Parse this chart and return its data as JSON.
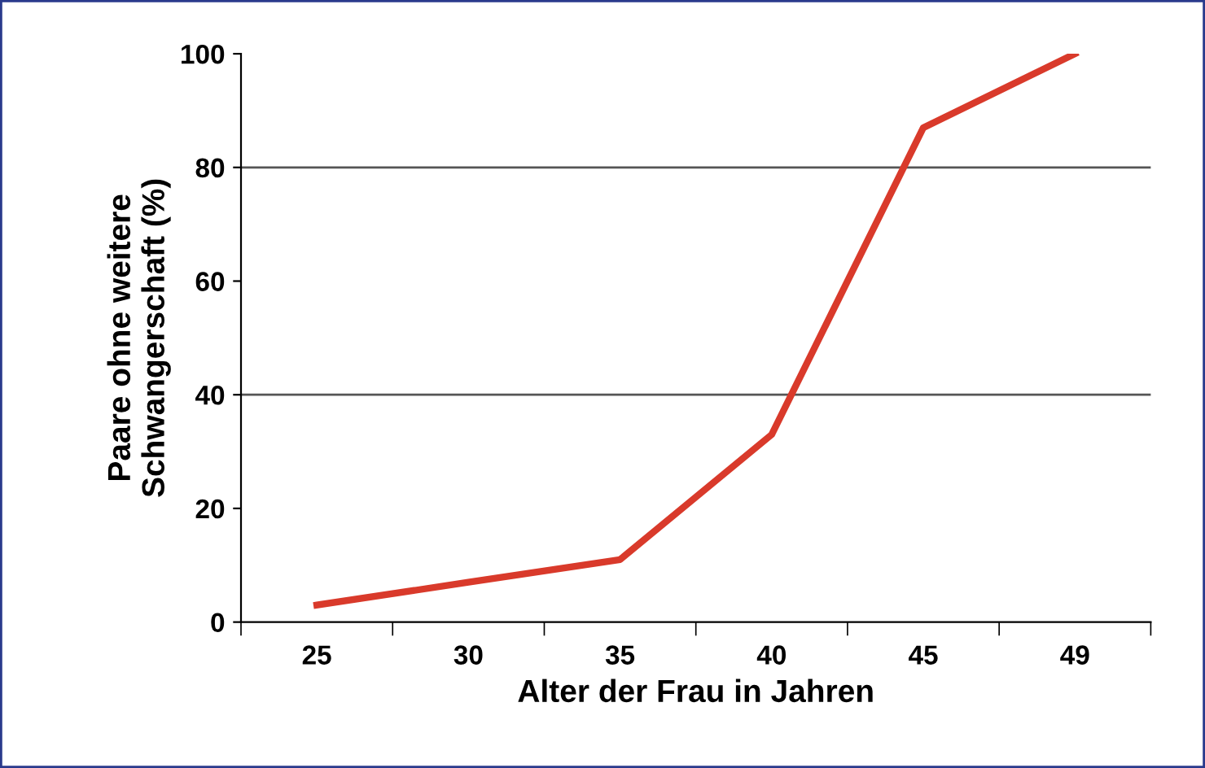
{
  "chart_data": {
    "type": "line",
    "xlabel": "Alter der Frau in Jahren",
    "ylabel": "Paare ohne weitere\nSchwangerschaft (%)",
    "categories": [
      "25",
      "30",
      "35",
      "40",
      "45",
      "49"
    ],
    "series": [
      {
        "color": "#d93a2b",
        "values": [
          3,
          7,
          11,
          33,
          87,
          100
        ]
      }
    ],
    "ylim": [
      0,
      100
    ],
    "yticks": [
      0,
      20,
      40,
      60,
      80,
      100
    ],
    "grid": false,
    "marker": "none",
    "line_style": "solid",
    "ref_lines": [
      {
        "axis": "y",
        "value": 40,
        "color": "#555555"
      },
      {
        "axis": "y",
        "value": 80,
        "color": "#555555"
      }
    ]
  }
}
